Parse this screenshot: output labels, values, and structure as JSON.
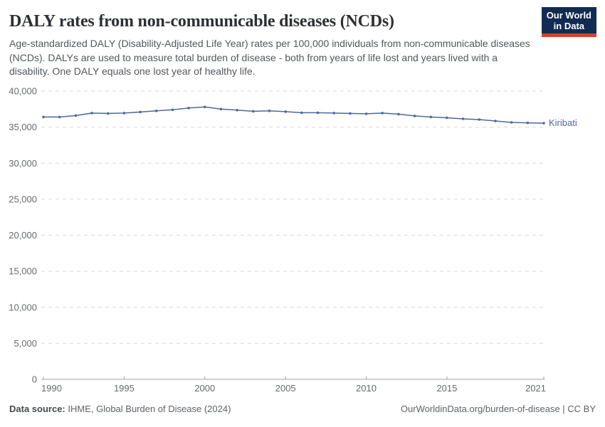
{
  "header": {
    "title": "DALY rates from non-communicable diseases (NCDs)",
    "subtitle": "Age-standardized DALY (Disability-Adjusted Life Year) rates per 100,000 individuals from non-communicable diseases (NCDs). DALYs are used to measure total burden of disease - both from years of life lost and years lived with a disability. One DALY equals one lost year of healthy life.",
    "logo": {
      "line1": "Our World",
      "line2": "in Data"
    }
  },
  "chart_data": {
    "type": "line",
    "title": "DALY rates from non-communicable diseases (NCDs)",
    "xlabel": "",
    "ylabel": "",
    "xlim": [
      1990,
      2021
    ],
    "ylim": [
      0,
      40000
    ],
    "grid": "horizontal-dashed",
    "legend_position": "end-of-line-label",
    "x_ticks": [
      1990,
      1995,
      2000,
      2005,
      2010,
      2015,
      2021
    ],
    "y_ticks": [
      0,
      5000,
      10000,
      15000,
      20000,
      25000,
      30000,
      35000,
      40000
    ],
    "y_tick_labels": [
      "0",
      "5,000",
      "10,000",
      "15,000",
      "20,000",
      "25,000",
      "30,000",
      "35,000",
      "40,000"
    ],
    "series": [
      {
        "name": "Kiribati",
        "color": "#4c6a9c",
        "x": [
          1990,
          1991,
          1992,
          1993,
          1994,
          1995,
          1996,
          1997,
          1998,
          1999,
          2000,
          2001,
          2002,
          2003,
          2004,
          2005,
          2006,
          2007,
          2008,
          2009,
          2010,
          2011,
          2012,
          2013,
          2014,
          2015,
          2016,
          2017,
          2018,
          2019,
          2020,
          2021
        ],
        "values": [
          36400,
          36400,
          36600,
          36950,
          36900,
          36950,
          37100,
          37250,
          37400,
          37650,
          37800,
          37500,
          37350,
          37200,
          37250,
          37150,
          37000,
          37000,
          36950,
          36900,
          36850,
          36950,
          36800,
          36550,
          36400,
          36300,
          36150,
          36050,
          35850,
          35650,
          35600,
          35550
        ]
      }
    ]
  },
  "footer": {
    "datasource_label": "Data source:",
    "datasource_value": " IHME, Global Burden of Disease (2024)",
    "link": "OurWorldinData.org/burden-of-disease | CC BY"
  },
  "colors": {
    "line": "#4c6a9c",
    "gridline": "#dcdcdc",
    "axis": "#a3a3a3",
    "tick_label": "#666a6e",
    "logo_bg": "#122b52",
    "logo_red": "#dc3d33"
  }
}
